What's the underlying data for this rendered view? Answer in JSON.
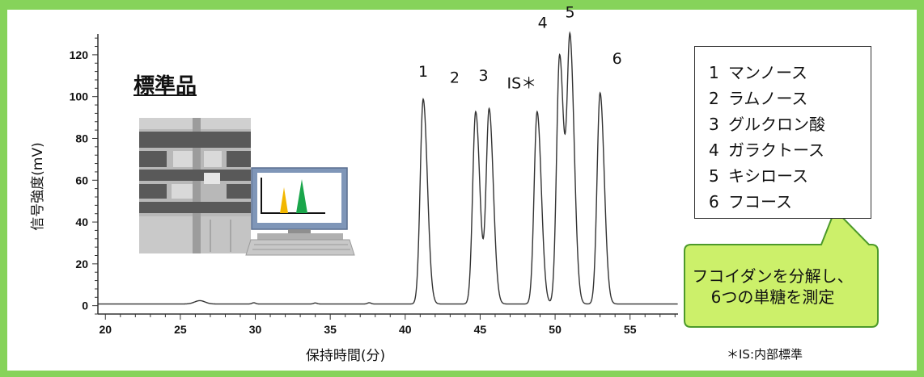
{
  "title": "標準品",
  "chart_data": {
    "type": "line",
    "xlabel": "保持時間(分)",
    "ylabel": "信号強度(mV)",
    "xlim": [
      19.5,
      58.2
    ],
    "ylim": [
      -4,
      130
    ],
    "xticks": [
      20,
      25,
      30,
      35,
      40,
      45,
      50,
      55
    ],
    "yticks": [
      0,
      20,
      40,
      60,
      80,
      100,
      120
    ],
    "grid": false,
    "peaks": [
      {
        "label": "1",
        "x": 41.2,
        "y": 98
      },
      {
        "label": "2",
        "x": 44.7,
        "y": 92
      },
      {
        "label": "3",
        "x": 45.6,
        "y": 93
      },
      {
        "label": "IS＊",
        "x": 48.8,
        "y": 92
      },
      {
        "label": "4",
        "x": 50.3,
        "y": 119
      },
      {
        "label": "5",
        "x": 51.0,
        "y": 124
      },
      {
        "label": "6",
        "x": 53.0,
        "y": 101
      }
    ]
  },
  "legend": {
    "items": [
      {
        "num": "1",
        "name": "マンノース"
      },
      {
        "num": "2",
        "name": "ラムノース"
      },
      {
        "num": "3",
        "name": "グルクロン酸"
      },
      {
        "num": "4",
        "name": "ガラクトース"
      },
      {
        "num": "5",
        "name": "キシロース"
      },
      {
        "num": "6",
        "name": "フコース"
      }
    ]
  },
  "callout": {
    "line1": "フコイダンを分解し、",
    "line2": "6つの単糖を測定"
  },
  "note": "＊IS:内部標準",
  "colors": {
    "frame": "#86d35a",
    "callout_fill": "#ccf06a",
    "callout_border": "#4c9a2a",
    "trace": "#333333",
    "peak_yellow": "#f2b700",
    "peak_green": "#1aa64b"
  }
}
